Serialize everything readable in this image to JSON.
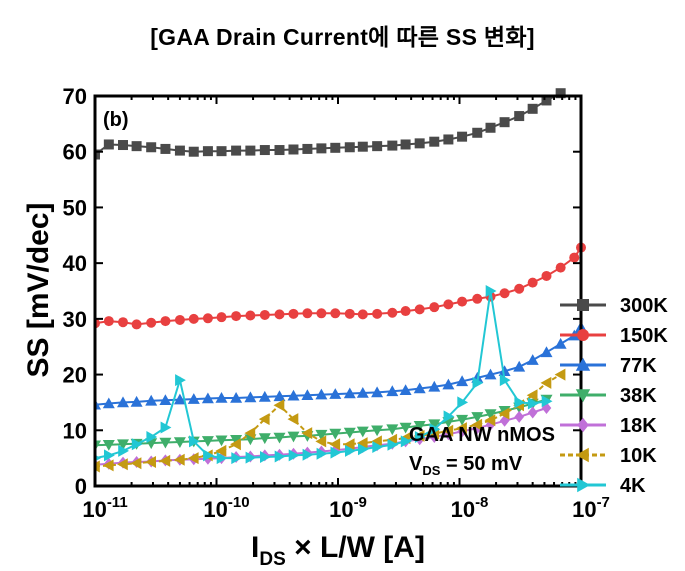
{
  "page_title": "[GAA Drain Current에 따른 SS 변화]",
  "chart_data": {
    "type": "line",
    "panel_label": "(b)",
    "xscale": "log",
    "xlim": [
      1e-11,
      1e-07
    ],
    "ylim": [
      0,
      70
    ],
    "xticks": [
      1e-11,
      1e-10,
      1e-09,
      1e-08,
      1e-07
    ],
    "yticks": [
      0,
      10,
      20,
      30,
      40,
      50,
      60,
      70
    ],
    "xticklabels": [
      {
        "base": "10",
        "exp": "-11"
      },
      {
        "base": "10",
        "exp": "-10"
      },
      {
        "base": "10",
        "exp": "-9"
      },
      {
        "base": "10",
        "exp": "-8"
      },
      {
        "base": "10",
        "exp": "-7"
      }
    ],
    "ylabel": "SS [mV/dec]",
    "xlabel": {
      "main": "I",
      "sub": "DS",
      "rest": " × L/W [A]"
    },
    "annotation": {
      "line1": "GAA NW nMOS",
      "line2_main": "V",
      "line2_sub": "DS",
      "line2_rest": " = 50 mV"
    },
    "legend_position": "right",
    "grid": false,
    "series": [
      {
        "name": "300K",
        "color": "#4a4a4a",
        "marker": "square",
        "dashed": false,
        "x": [
          1e-11,
          1.3e-11,
          1.7e-11,
          2.2e-11,
          2.9e-11,
          3.8e-11,
          5e-11,
          6.5e-11,
          8.5e-11,
          1.1e-10,
          1.45e-10,
          1.9e-10,
          2.5e-10,
          3.3e-10,
          4.3e-10,
          5.6e-10,
          7.3e-10,
          9.5e-10,
          1.25e-09,
          1.6e-09,
          2.1e-09,
          2.8e-09,
          3.6e-09,
          4.7e-09,
          6.2e-09,
          8.1e-09,
          1.05e-08,
          1.4e-08,
          1.8e-08,
          2.35e-08,
          3.1e-08,
          4e-08,
          5.2e-08,
          6.8e-08
        ],
        "y": [
          59.5,
          61.3,
          61.2,
          61.0,
          60.8,
          60.5,
          60.2,
          60.0,
          60.1,
          60.1,
          60.2,
          60.2,
          60.3,
          60.3,
          60.4,
          60.5,
          60.6,
          60.7,
          60.8,
          60.9,
          61.0,
          61.1,
          61.3,
          61.5,
          61.8,
          62.2,
          62.7,
          63.4,
          64.3,
          65.3,
          66.4,
          67.7,
          69.2,
          70.5
        ]
      },
      {
        "name": "150K",
        "color": "#e84040",
        "marker": "circle",
        "dashed": false,
        "x": [
          1e-11,
          1.3e-11,
          1.7e-11,
          2.2e-11,
          2.9e-11,
          3.8e-11,
          5e-11,
          6.5e-11,
          8.5e-11,
          1.1e-10,
          1.45e-10,
          1.9e-10,
          2.5e-10,
          3.3e-10,
          4.3e-10,
          5.6e-10,
          7.3e-10,
          9.5e-10,
          1.25e-09,
          1.6e-09,
          2.1e-09,
          2.8e-09,
          3.6e-09,
          4.7e-09,
          6.2e-09,
          8.1e-09,
          1.05e-08,
          1.4e-08,
          1.8e-08,
          2.35e-08,
          3.1e-08,
          4e-08,
          5.2e-08,
          6.8e-08,
          8.8e-08,
          1e-07
        ],
        "y": [
          29.2,
          29.6,
          29.4,
          29.0,
          29.3,
          29.6,
          29.8,
          30.0,
          30.1,
          30.3,
          30.5,
          30.6,
          30.7,
          30.8,
          30.9,
          31.0,
          31.0,
          31.0,
          30.9,
          30.8,
          30.9,
          31.1,
          31.4,
          31.7,
          32.1,
          32.6,
          33.1,
          33.6,
          34.0,
          34.6,
          35.4,
          36.5,
          37.7,
          39.2,
          41.0,
          42.8
        ]
      },
      {
        "name": "77K",
        "color": "#2a72d8",
        "marker": "triangle-up",
        "dashed": false,
        "x": [
          1e-11,
          1.3e-11,
          1.7e-11,
          2.2e-11,
          2.9e-11,
          3.8e-11,
          5e-11,
          6.5e-11,
          8.5e-11,
          1.1e-10,
          1.45e-10,
          1.9e-10,
          2.5e-10,
          3.3e-10,
          4.3e-10,
          5.6e-10,
          7.3e-10,
          9.5e-10,
          1.25e-09,
          1.6e-09,
          2.1e-09,
          2.8e-09,
          3.6e-09,
          4.7e-09,
          6.2e-09,
          8.1e-09,
          1.05e-08,
          1.4e-08,
          1.8e-08,
          2.35e-08,
          3.1e-08,
          4e-08,
          5.2e-08,
          6.8e-08,
          8.8e-08,
          1e-07
        ],
        "y": [
          14.6,
          14.8,
          15.0,
          15.1,
          15.3,
          15.4,
          15.5,
          15.6,
          15.7,
          15.8,
          15.8,
          15.9,
          16.0,
          16.1,
          16.2,
          16.3,
          16.4,
          16.5,
          16.6,
          16.7,
          16.8,
          17.0,
          17.2,
          17.5,
          17.8,
          18.2,
          18.8,
          19.4,
          20.0,
          20.6,
          21.4,
          22.6,
          24.0,
          25.5,
          27.0,
          28.5
        ]
      },
      {
        "name": "38K",
        "color": "#3fae6a",
        "marker": "triangle-down",
        "dashed": false,
        "x": [
          1e-11,
          1.3e-11,
          1.7e-11,
          2.2e-11,
          2.9e-11,
          3.8e-11,
          5e-11,
          6.5e-11,
          8.5e-11,
          1.1e-10,
          1.45e-10,
          1.9e-10,
          2.5e-10,
          3.3e-10,
          4.3e-10,
          5.6e-10,
          7.3e-10,
          9.5e-10,
          1.25e-09,
          1.6e-09,
          2.1e-09,
          2.8e-09,
          3.6e-09,
          4.7e-09,
          6.2e-09,
          8.1e-09,
          1.05e-08,
          1.4e-08,
          1.8e-08,
          2.35e-08,
          3.1e-08,
          4e-08,
          5.2e-08
        ],
        "y": [
          7.3,
          7.4,
          7.5,
          7.6,
          7.7,
          7.8,
          7.9,
          8.0,
          8.1,
          8.2,
          8.3,
          8.4,
          8.6,
          8.7,
          8.9,
          9.0,
          9.2,
          9.4,
          9.6,
          9.8,
          10.0,
          10.2,
          10.5,
          10.8,
          11.1,
          11.5,
          11.9,
          12.4,
          12.9,
          13.5,
          14.1,
          14.8,
          15.5
        ]
      },
      {
        "name": "18K",
        "color": "#c070d8",
        "marker": "diamond",
        "dashed": false,
        "x": [
          1e-11,
          1.3e-11,
          1.7e-11,
          2.2e-11,
          2.9e-11,
          3.8e-11,
          5e-11,
          6.5e-11,
          8.5e-11,
          1.1e-10,
          1.45e-10,
          1.9e-10,
          2.5e-10,
          3.3e-10,
          4.3e-10,
          5.6e-10,
          7.3e-10,
          9.5e-10,
          1.25e-09,
          1.6e-09,
          2.1e-09,
          2.8e-09,
          3.6e-09,
          4.7e-09,
          6.2e-09,
          8.1e-09,
          1.05e-08,
          1.4e-08,
          1.8e-08,
          2.35e-08,
          3.1e-08,
          4e-08,
          5.2e-08
        ],
        "y": [
          3.8,
          4.0,
          4.2,
          4.3,
          4.4,
          4.6,
          4.7,
          4.8,
          4.9,
          5.0,
          5.2,
          5.3,
          5.5,
          5.6,
          5.8,
          6.0,
          6.2,
          6.4,
          6.7,
          7.0,
          7.3,
          7.6,
          8.0,
          8.4,
          8.8,
          9.3,
          9.8,
          10.4,
          11.0,
          11.7,
          12.4,
          13.2,
          14.0
        ]
      },
      {
        "name": "10K",
        "color": "#c49a12",
        "marker": "triangle-left",
        "dashed": true,
        "x": [
          1e-11,
          1.3e-11,
          1.7e-11,
          2.2e-11,
          2.9e-11,
          3.8e-11,
          5e-11,
          6.5e-11,
          8.5e-11,
          1.1e-10,
          1.45e-10,
          1.9e-10,
          2.5e-10,
          3.3e-10,
          4.3e-10,
          5.6e-10,
          7.3e-10,
          9.5e-10,
          1.25e-09,
          1.6e-09,
          2.1e-09,
          2.8e-09,
          3.6e-09,
          4.7e-09,
          6.2e-09,
          8.1e-09,
          1.05e-08,
          1.4e-08,
          1.8e-08,
          2.35e-08,
          3.1e-08,
          4e-08,
          5.2e-08,
          6.8e-08
        ],
        "y": [
          3.5,
          3.7,
          3.9,
          4.1,
          4.3,
          4.5,
          4.7,
          5.0,
          5.5,
          6.3,
          7.5,
          9.5,
          12.0,
          14.5,
          12.0,
          9.5,
          8.0,
          7.5,
          7.5,
          7.7,
          8.0,
          8.3,
          8.6,
          9.0,
          9.4,
          9.9,
          10.4,
          11.0,
          11.8,
          13.0,
          14.5,
          16.3,
          18.5,
          20.0
        ]
      },
      {
        "name": "4K",
        "color": "#22c7d4",
        "marker": "triangle-right",
        "dashed": false,
        "x": [
          1e-11,
          1.3e-11,
          1.7e-11,
          2.2e-11,
          2.9e-11,
          3.8e-11,
          5e-11,
          6.5e-11,
          8.5e-11,
          1.1e-10,
          1.45e-10,
          1.9e-10,
          2.5e-10,
          3.3e-10,
          4.3e-10,
          5.6e-10,
          7.3e-10,
          9.5e-10,
          1.25e-09,
          1.6e-09,
          2.1e-09,
          2.8e-09,
          3.6e-09,
          4.7e-09,
          6.2e-09,
          8.1e-09,
          1.05e-08,
          1.4e-08,
          1.8e-08,
          2.35e-08,
          3.1e-08,
          4e-08,
          5.2e-08
        ],
        "y": [
          5.0,
          5.5,
          6.3,
          7.5,
          8.8,
          10.5,
          19.0,
          8.0,
          5.5,
          5.0,
          5.0,
          5.1,
          5.2,
          5.3,
          5.5,
          5.6,
          5.8,
          6.0,
          6.3,
          6.6,
          7.0,
          7.4,
          8.0,
          8.8,
          10.2,
          12.5,
          15.0,
          18.5,
          35.0,
          19.0,
          15.0,
          14.8,
          15.2
        ]
      }
    ]
  }
}
